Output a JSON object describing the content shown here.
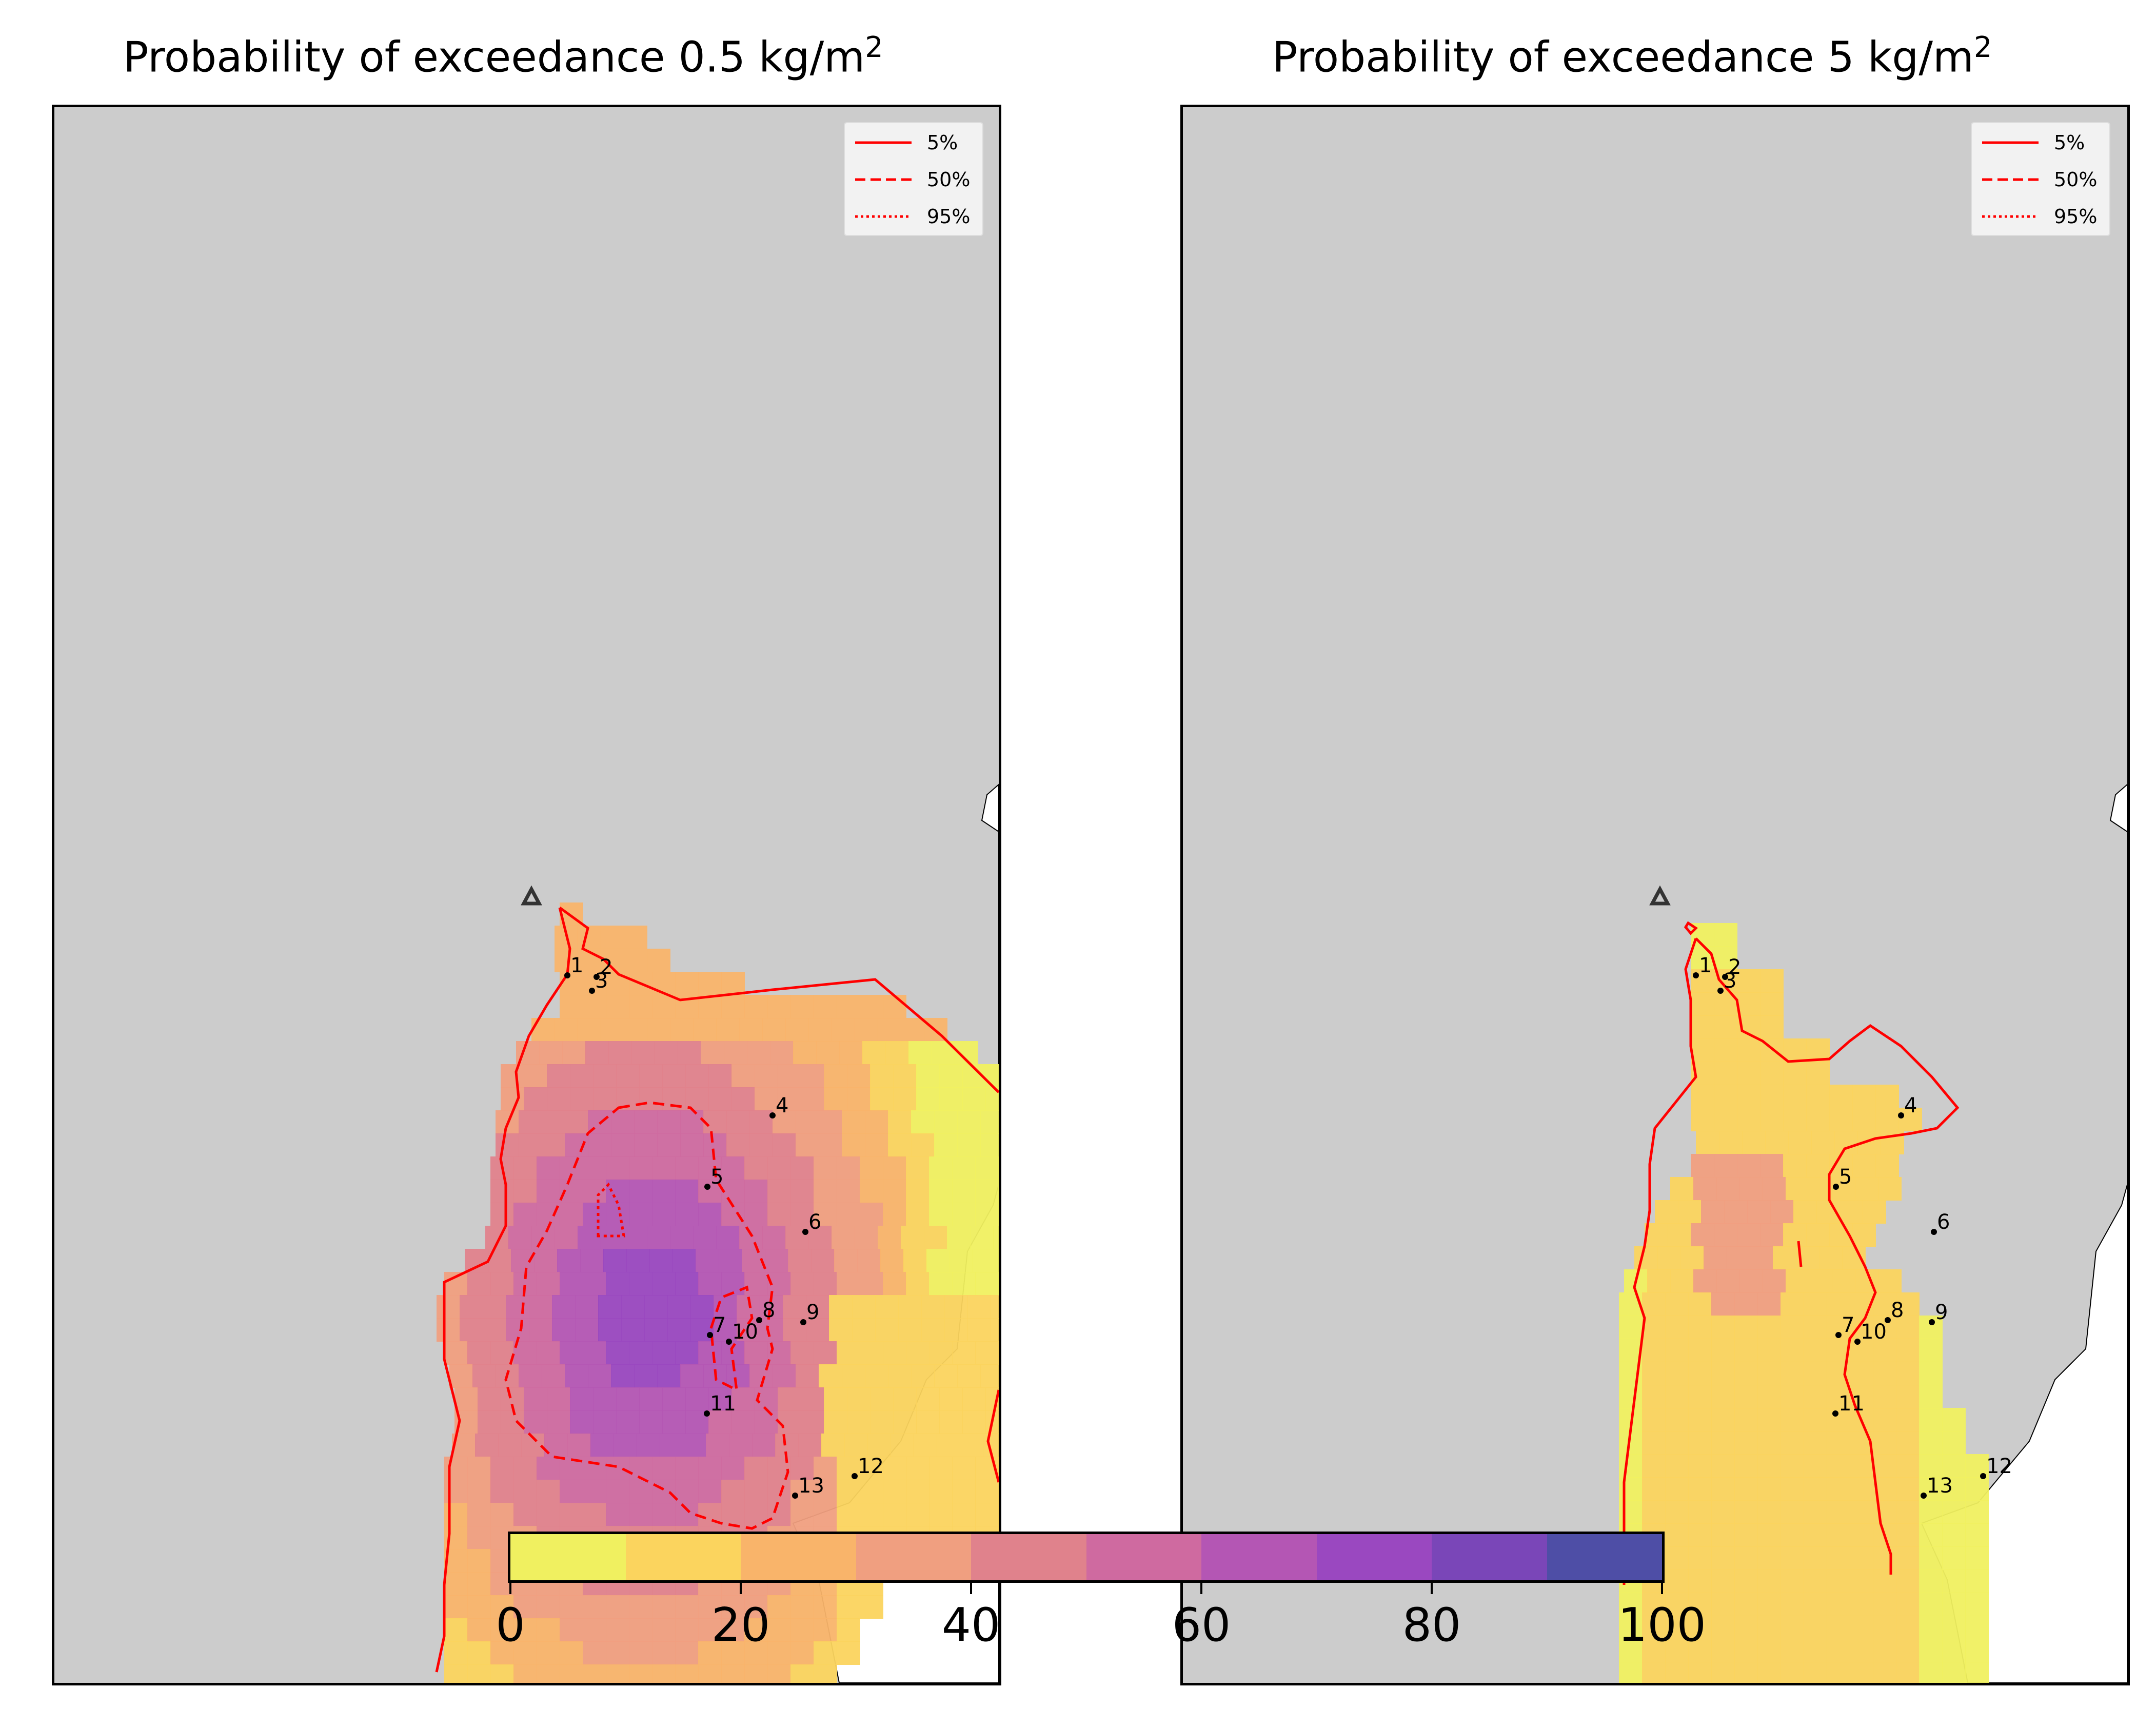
{
  "panels": [
    {
      "title": "Probability of exceedance 0.5 kg/m",
      "title_sup": "2",
      "legend": [
        {
          "label": "5%",
          "style": "solid"
        },
        {
          "label": "50%",
          "style": "dashed"
        },
        {
          "label": "95%",
          "style": "dotted"
        }
      ],
      "sites": [
        "1",
        "2",
        "3",
        "4",
        "5",
        "6",
        "7",
        "8",
        "9",
        "10",
        "11",
        "12",
        "13"
      ]
    },
    {
      "title": "Probability of exceedance 5 kg/m",
      "title_sup": "2",
      "legend": [
        {
          "label": "5%",
          "style": "solid"
        },
        {
          "label": "50%",
          "style": "dashed"
        },
        {
          "label": "95%",
          "style": "dotted"
        }
      ],
      "sites": [
        "1",
        "2",
        "3",
        "4",
        "5",
        "6",
        "7",
        "8",
        "9",
        "10",
        "11",
        "12",
        "13"
      ]
    }
  ],
  "colorbar": {
    "ticks": [
      "0",
      "20",
      "40",
      "60",
      "80",
      "100"
    ],
    "colors": [
      "#f0f060",
      "#fbd45e",
      "#f9b46a",
      "#f09f80",
      "#e0828c",
      "#cf6aa0",
      "#b456b4",
      "#9a48c0",
      "#7a46b8",
      "#4e4ea6"
    ]
  },
  "colors": {
    "land": "#cccccc",
    "sea": "#ffffff",
    "contour": "#ff0000",
    "vent_marker": "#333333"
  }
}
